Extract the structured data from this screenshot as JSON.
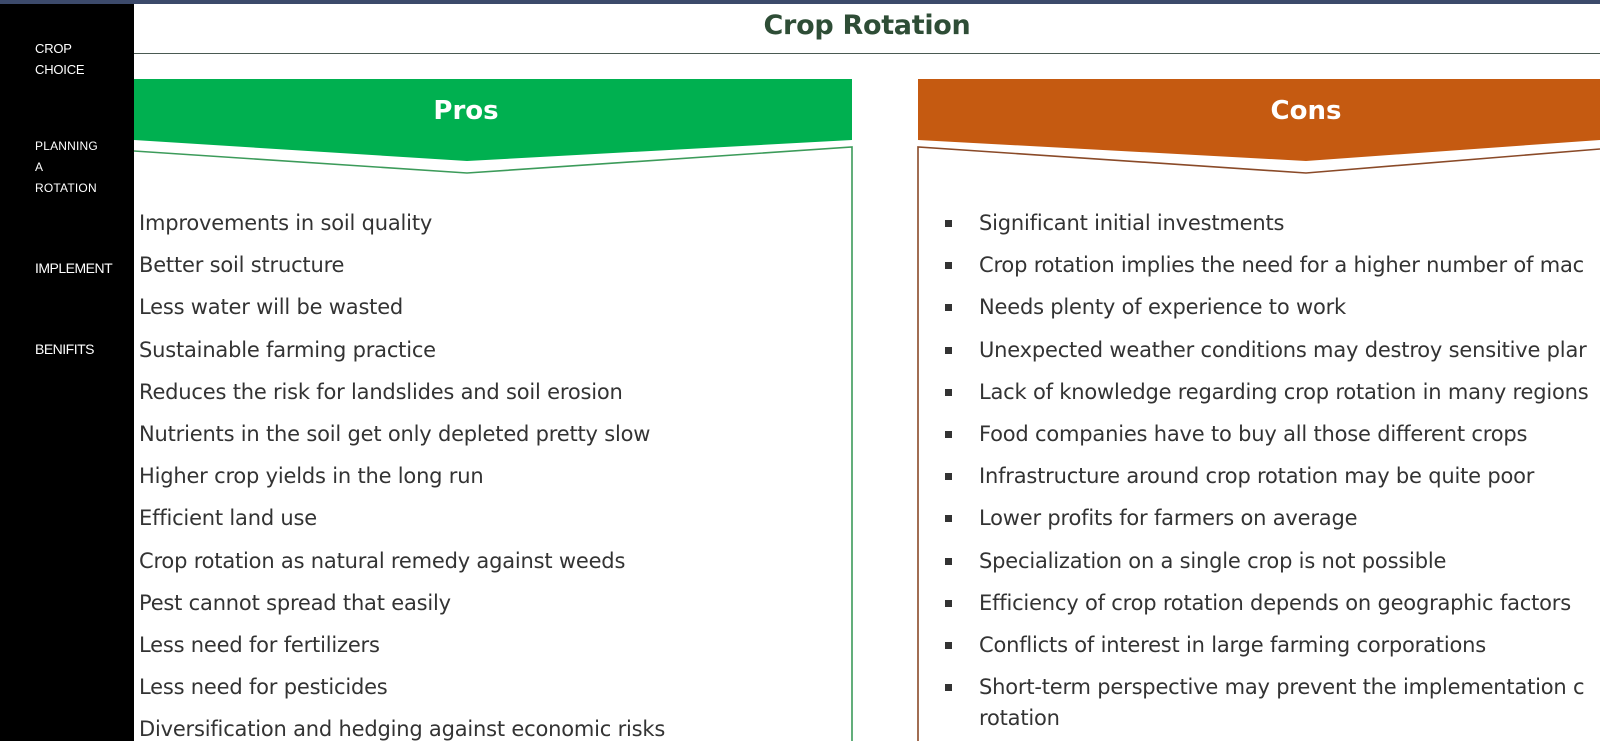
{
  "sidebar": {
    "items": [
      {
        "label_lines": [
          "CROP",
          "CHOICE"
        ]
      },
      {
        "label_lines": [
          "PLANNING",
          "A",
          "ROTATION"
        ]
      },
      {
        "label_lines": [
          "IMPLEMENT"
        ]
      },
      {
        "label_lines": [
          "BENIFITS"
        ]
      }
    ]
  },
  "slide": {
    "title": "Crop Rotation"
  },
  "pros": {
    "header": "Pros",
    "color": "#00b050",
    "items": [
      "Improvements in soil quality",
      "Better soil structure",
      "Less water will be wasted",
      "Sustainable farming practice",
      "Reduces the risk for landslides and soil erosion",
      "Nutrients in the soil get only depleted pretty slow",
      "Higher crop yields in the long run",
      "Efficient land use",
      "Crop rotation as natural remedy against weeds",
      "Pest cannot spread that easily",
      "Less need for fertilizers",
      "Less need for pesticides",
      "Diversification and hedging against economic risks"
    ]
  },
  "cons": {
    "header": "Cons",
    "color": "#c55a11",
    "items": [
      "Significant initial investments",
      "Crop rotation implies the need for a higher number of mac",
      "Needs plenty of experience to work",
      "Unexpected weather conditions may destroy sensitive plar",
      "Lack of knowledge regarding crop rotation in many regions",
      "Food companies have to buy all those different crops",
      "Infrastructure around crop rotation may be quite poor",
      "Lower profits for farmers on average",
      "Specialization on a single crop is not possible",
      "Efficiency of crop rotation depends on geographic factors",
      "Conflicts of interest in large farming corporations",
      "Short-term perspective may prevent the implementation c"
    ],
    "last_item_continuation": "rotation"
  }
}
